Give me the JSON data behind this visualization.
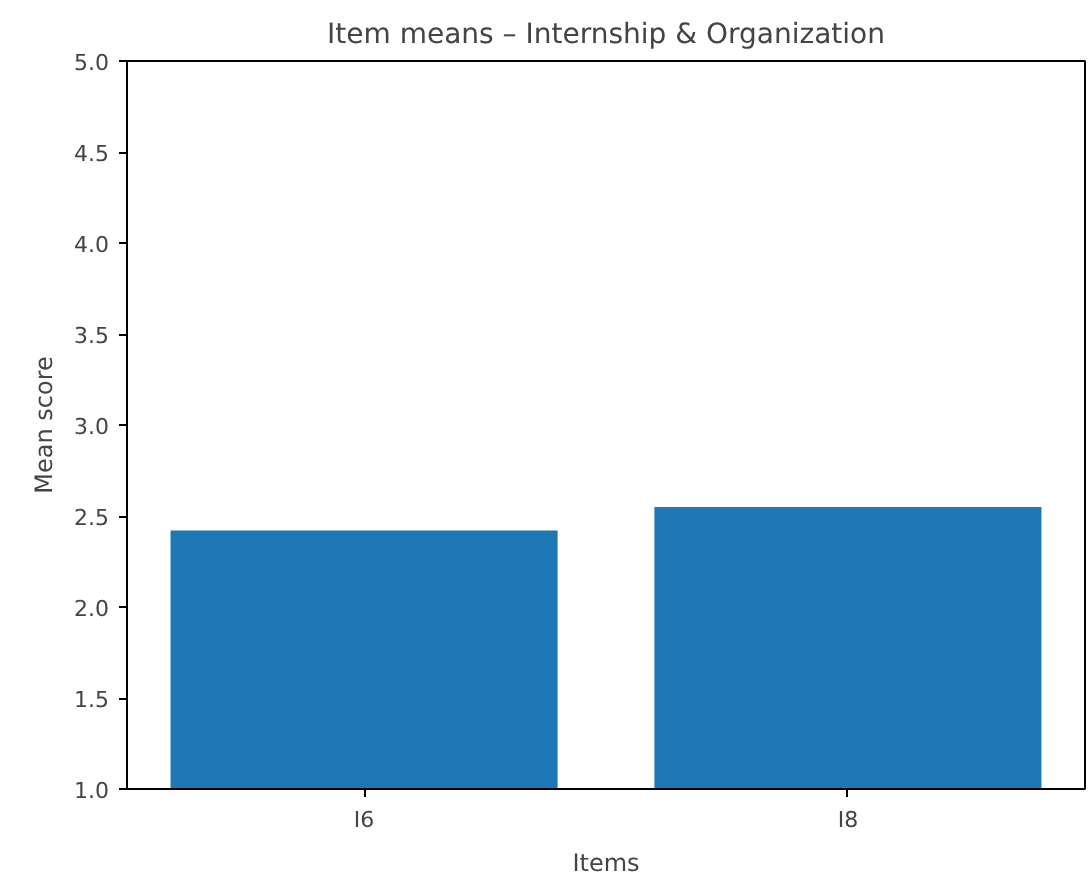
{
  "chart_data": {
    "type": "bar",
    "title": "Item means – Internship & Organization",
    "xlabel": "Items",
    "ylabel": "Mean score",
    "categories": [
      "I6",
      "I8"
    ],
    "values": [
      2.42,
      2.55
    ],
    "color": "#1f77b4",
    "ylim": [
      1.0,
      5.0
    ],
    "yticks": [
      {
        "value": 1.0,
        "label": "1.0"
      },
      {
        "value": 1.5,
        "label": "1.5"
      },
      {
        "value": 2.0,
        "label": "2.0"
      },
      {
        "value": 2.5,
        "label": "2.5"
      },
      {
        "value": 3.0,
        "label": "3.0"
      },
      {
        "value": 3.5,
        "label": "3.5"
      },
      {
        "value": 4.0,
        "label": "4.0"
      },
      {
        "value": 4.5,
        "label": "4.5"
      },
      {
        "value": 5.0,
        "label": "5.0"
      }
    ],
    "grid": false
  }
}
